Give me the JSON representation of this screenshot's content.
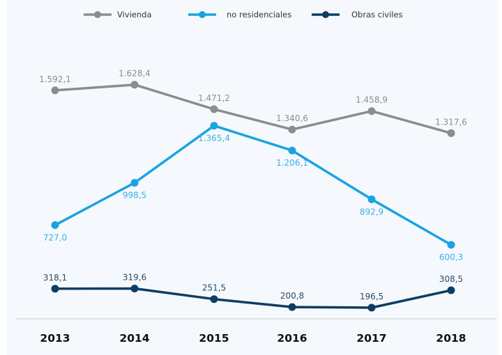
{
  "chart_data": {
    "type": "line",
    "title": "",
    "xlabel": "",
    "ylabel": "",
    "categories": [
      "2013",
      "2014",
      "2015",
      "2016",
      "2017",
      "2018"
    ],
    "ylim": [
      0,
      2150
    ],
    "grid": false,
    "legend_position": "top-center",
    "series": [
      {
        "name": "Vivienda",
        "color": "#8c8c8c",
        "label_color": "#8c8c8c",
        "label_position": "above",
        "values": [
          1592.1,
          1628.4,
          1471.2,
          1340.6,
          1458.9,
          1317.6
        ],
        "labels": [
          "1.592,1",
          "1.628,4",
          "1.471,2",
          "1.340,6",
          "1.458,9",
          "1.317,6"
        ]
      },
      {
        "name": "no residenciales",
        "color": "#1aa3e0",
        "label_color": "#3aaee6",
        "label_position": "below",
        "values": [
          727.0,
          998.5,
          1365.4,
          1206.1,
          892.9,
          600.3
        ],
        "labels": [
          "727,0",
          "998,5",
          "1.365,4",
          "1.206,1",
          "892,9",
          "600,3"
        ]
      },
      {
        "name": "Obras civiles",
        "color": "#0e3d63",
        "label_color": "#2c4c66",
        "label_position": "above",
        "values": [
          318.1,
          319.6,
          251.5,
          200.8,
          196.5,
          308.5
        ],
        "labels": [
          "318,1",
          "319,6",
          "251,5",
          "200,8",
          "196,5",
          "308,5"
        ]
      }
    ]
  },
  "colors": {
    "background": "#f5f9fd",
    "axis_line": "#dcdcdc"
  }
}
